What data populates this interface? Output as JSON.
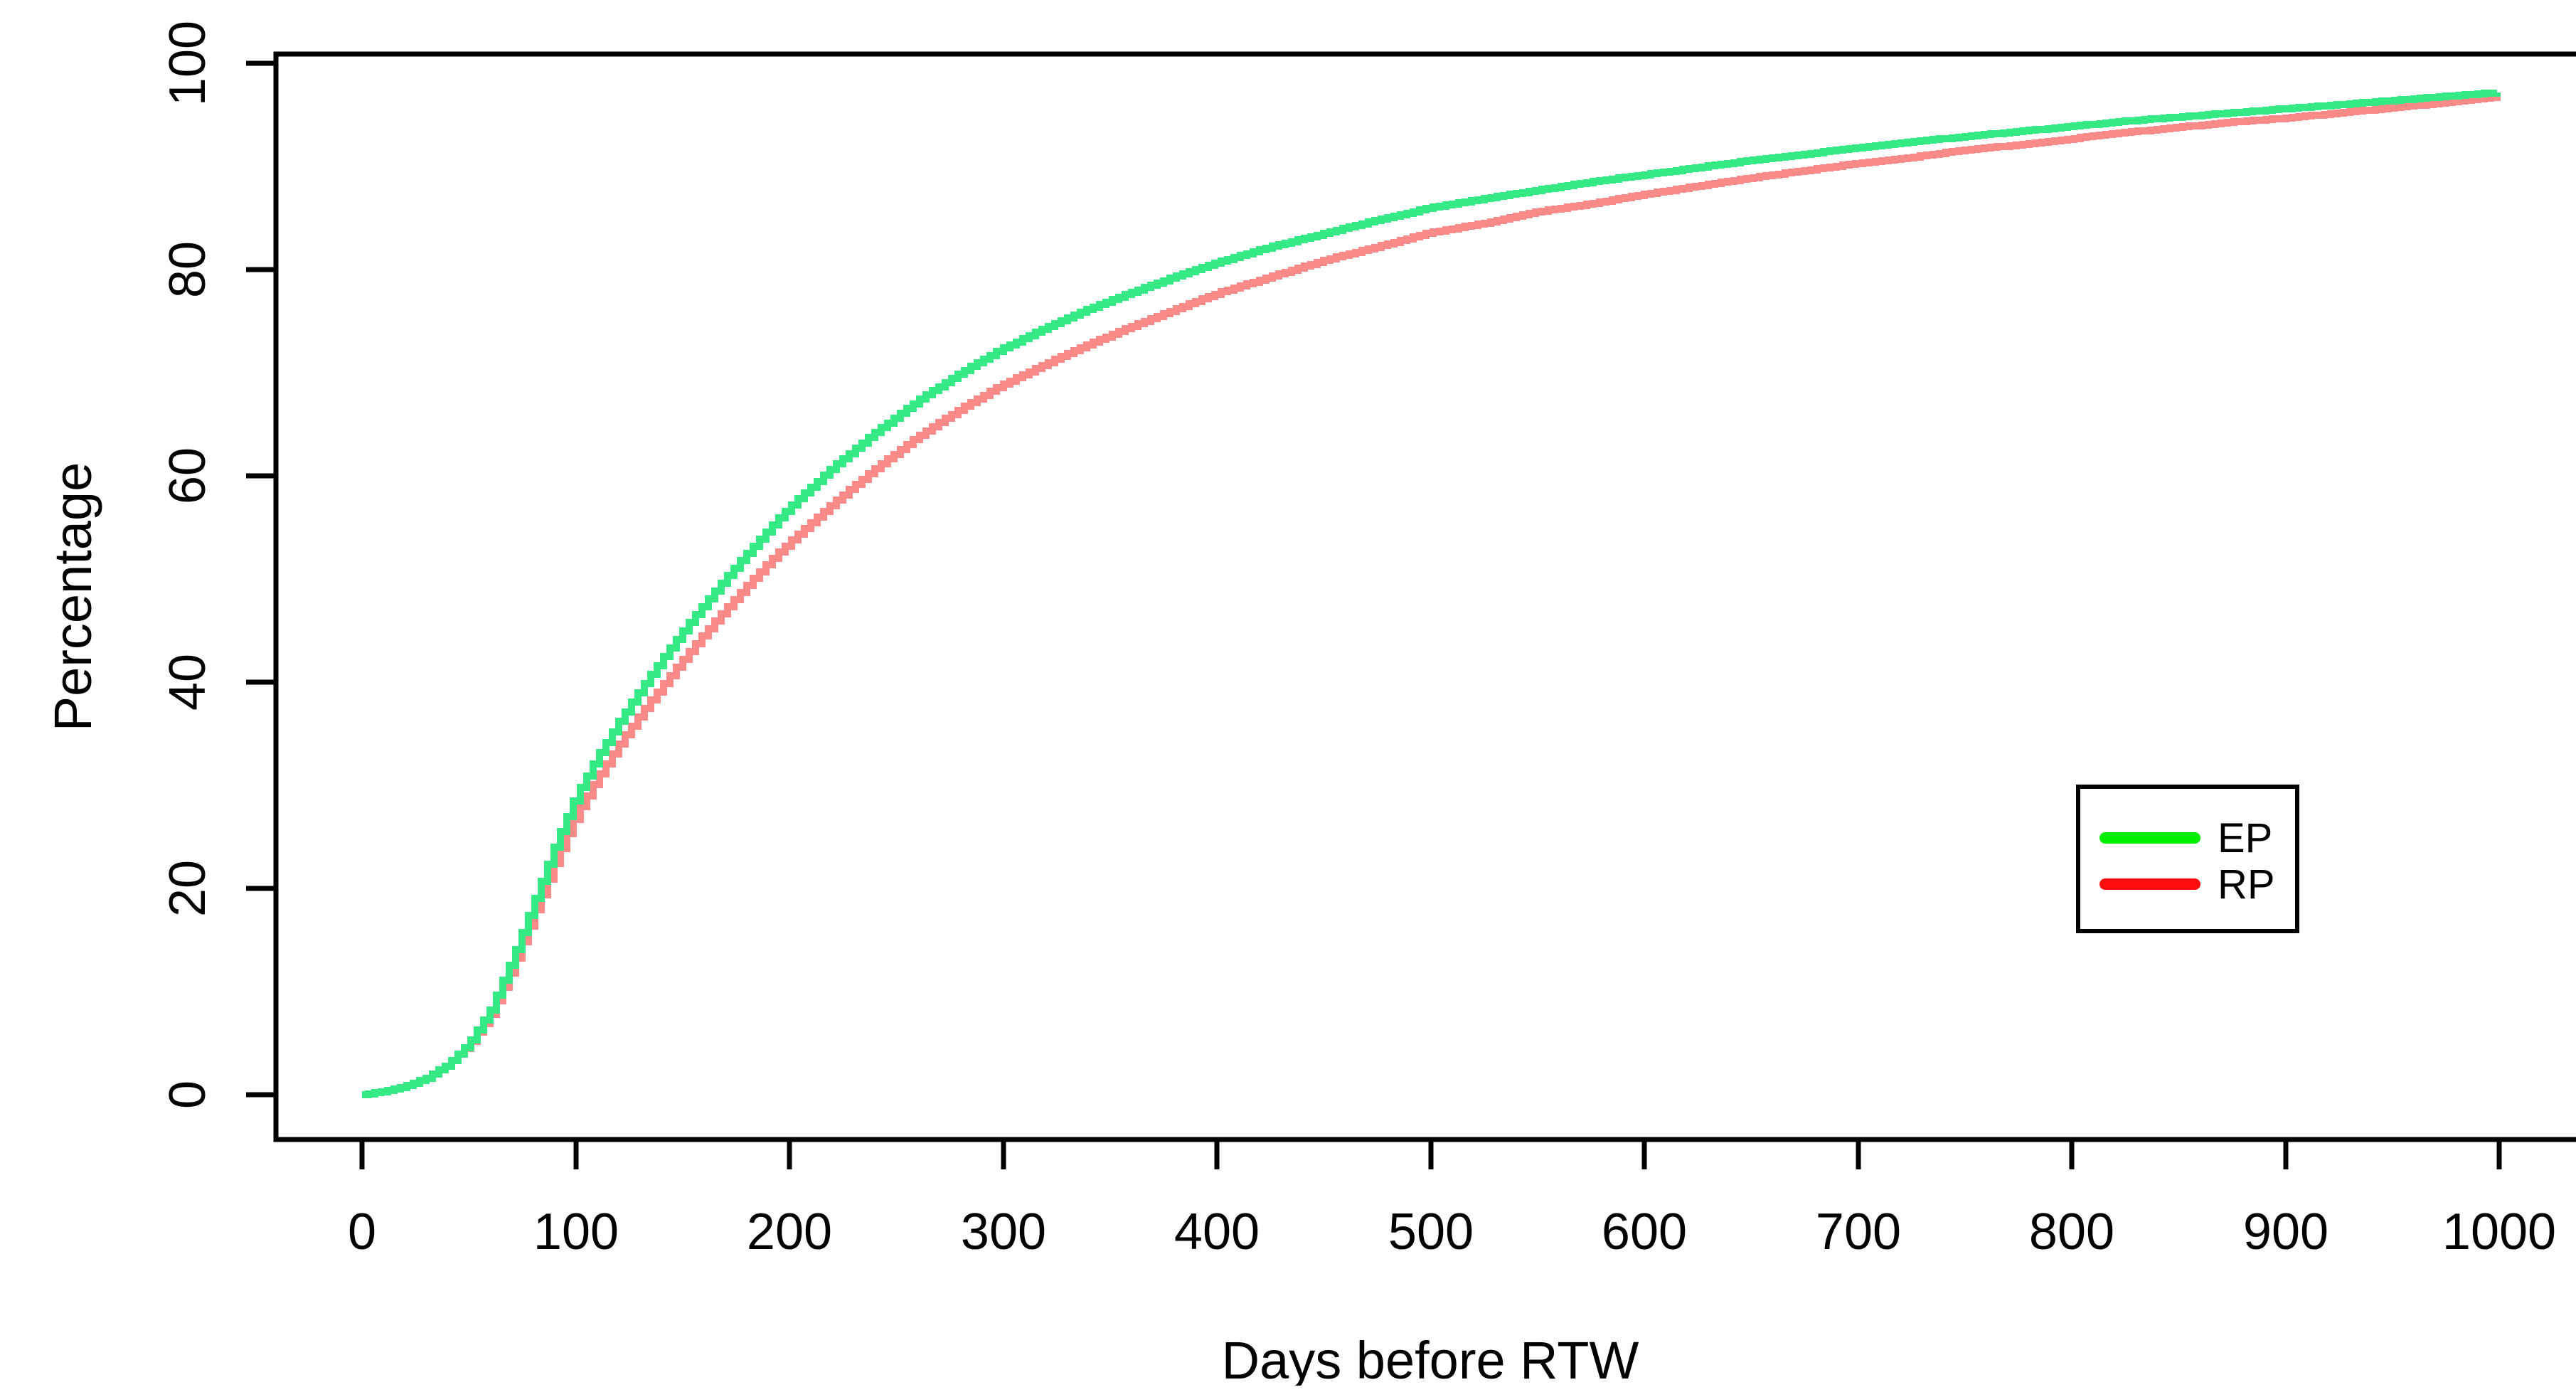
{
  "chart_data": {
    "type": "line",
    "title": "",
    "xlabel": "Days before RTW",
    "ylabel": "Percentage",
    "xlim": [
      0,
      1000
    ],
    "ylim": [
      0,
      100
    ],
    "x_ticks": [
      0,
      100,
      200,
      300,
      400,
      500,
      600,
      700,
      800,
      900,
      1000
    ],
    "y_ticks": [
      0,
      20,
      40,
      60,
      80,
      100
    ],
    "grid": false,
    "line_style": "step",
    "axis_color": "#000000",
    "background_color": "#ffffff",
    "legend": {
      "position": "right-middle",
      "border_color": "#000000",
      "entries": [
        {
          "label": "EP",
          "color": "#00ee00"
        },
        {
          "label": "RP",
          "color": "#ff0d0d"
        }
      ]
    },
    "x": [
      0,
      10,
      20,
      30,
      40,
      50,
      60,
      70,
      80,
      90,
      100,
      110,
      120,
      130,
      140,
      150,
      160,
      170,
      180,
      190,
      200,
      220,
      240,
      260,
      280,
      300,
      320,
      340,
      360,
      380,
      400,
      425,
      450,
      475,
      500,
      525,
      550,
      575,
      600,
      625,
      650,
      675,
      700,
      725,
      750,
      775,
      800,
      825,
      850,
      875,
      900,
      925,
      950,
      975,
      1000
    ],
    "series": [
      {
        "name": "EP",
        "color": "#35ea85",
        "values": [
          0,
          0.3,
          0.8,
          1.6,
          2.9,
          5,
          8.2,
          13,
          18.5,
          24,
          29,
          32.8,
          36.2,
          39.3,
          42.2,
          45,
          47.6,
          50.1,
          52.5,
          54.8,
          57,
          60.8,
          64.2,
          67.3,
          70,
          72.4,
          74.4,
          76.2,
          77.8,
          79.3,
          80.7,
          82.2,
          83.5,
          84.8,
          86,
          86.9,
          87.7,
          88.5,
          89.2,
          89.9,
          90.6,
          91.2,
          91.8,
          92.4,
          92.9,
          93.4,
          93.9,
          94.4,
          94.8,
          95.2,
          95.6,
          96,
          96.4,
          96.8,
          97.2
        ]
      },
      {
        "name": "RP",
        "color": "#f98a88",
        "values": [
          0,
          0.3,
          0.8,
          1.6,
          2.9,
          4.9,
          7.8,
          12.2,
          17.4,
          22.4,
          27.2,
          30.8,
          34,
          36.9,
          39.6,
          42.2,
          44.7,
          47.1,
          49.4,
          51.6,
          53.6,
          57.3,
          60.7,
          63.8,
          66.5,
          68.9,
          70.9,
          72.8,
          74.5,
          76.1,
          77.7,
          79.3,
          80.9,
          82.2,
          83.6,
          84.5,
          85.6,
          86.4,
          87.3,
          88.1,
          88.9,
          89.6,
          90.3,
          90.9,
          91.6,
          92.1,
          92.7,
          93.3,
          93.8,
          94.3,
          94.7,
          95.2,
          95.7,
          96.2,
          96.8
        ]
      }
    ]
  }
}
